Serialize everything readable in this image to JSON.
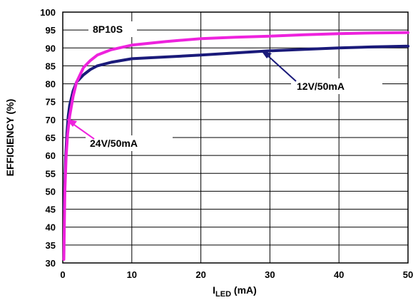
{
  "chart_data": {
    "type": "line",
    "xlabel_main": "I",
    "xlabel_sub": "LED",
    "xlabel_unit": " (mA)",
    "ylabel": "EFFICIENCY (%)",
    "xlim": [
      0,
      50
    ],
    "ylim": [
      30,
      100
    ],
    "xticks": [
      0,
      10,
      20,
      30,
      40,
      50
    ],
    "yticks": [
      30,
      35,
      40,
      45,
      50,
      55,
      60,
      65,
      70,
      75,
      80,
      85,
      90,
      95,
      100
    ],
    "grid": true,
    "legend": "none",
    "annotations": {
      "part": "8P10S",
      "series_12v": "12V/50mA",
      "series_24v": "24V/50mA"
    },
    "series": [
      {
        "name": "12V/50mA",
        "color": "#1a1a7a",
        "x": [
          0.2,
          0.4,
          0.6,
          0.8,
          1.0,
          1.5,
          2,
          3,
          4,
          5,
          7,
          10,
          15,
          20,
          25,
          30,
          35,
          40,
          45,
          50
        ],
        "y": [
          45,
          59,
          66,
          71,
          74,
          78,
          80.5,
          82.5,
          84,
          85,
          86,
          87,
          87.5,
          88,
          88.6,
          89.2,
          89.6,
          90,
          90.3,
          90.5
        ]
      },
      {
        "name": "24V/50mA",
        "color": "#ee22dd",
        "x": [
          0.15,
          0.3,
          0.5,
          0.7,
          1.0,
          1.5,
          2,
          3,
          4,
          5,
          7,
          10,
          15,
          20,
          25,
          30,
          35,
          40,
          45,
          50
        ],
        "y": [
          31,
          50,
          60,
          66,
          71,
          76.5,
          80.5,
          84.5,
          86.5,
          88,
          89.5,
          90.8,
          91.8,
          92.6,
          93,
          93.3,
          93.7,
          94,
          94.2,
          94.3
        ]
      }
    ]
  }
}
